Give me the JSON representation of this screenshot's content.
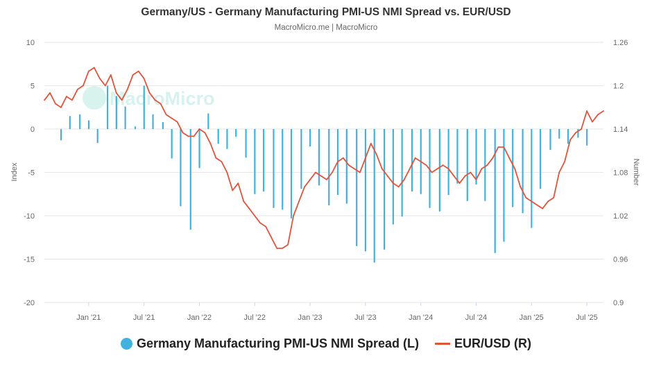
{
  "chart_data": {
    "type": "bar+line",
    "title": "Germany/US - Germany Manufacturing PMI-US NMI Spread vs. EUR/USD",
    "subtitle": "MacroMicro.me | MacroMicro",
    "watermark": "MacroMicro",
    "x_ticks": [
      "Jan '21",
      "Jul '21",
      "Jan '22",
      "Jul '22",
      "Jan '23",
      "Jul '23",
      "Jan '24",
      "Jul '24",
      "Jan '25",
      "Jul '25"
    ],
    "y_left": {
      "label": "Index",
      "min": -20,
      "max": 10,
      "ticks": [
        "10",
        "5",
        "0",
        "-5",
        "-10",
        "-15",
        "-20"
      ]
    },
    "y_right": {
      "label": "Number",
      "min": 0.9,
      "max": 1.26,
      "ticks": [
        "1.26",
        "1.2",
        "1.14",
        "1.08",
        "1.02",
        "0.96",
        "0.9"
      ]
    },
    "colors": {
      "spread": "#41b2dd",
      "eurusd": "#e2533a",
      "grid": "#e6e6e6"
    },
    "series": [
      {
        "name": "Germany Manufacturing PMI-US NMI Spread (L)",
        "type": "bar",
        "axis": "left",
        "x": [
          2020.75,
          2020.83,
          2020.92,
          2021.0,
          2021.08,
          2021.17,
          2021.25,
          2021.33,
          2021.42,
          2021.5,
          2021.58,
          2021.67,
          2021.75,
          2021.83,
          2021.92,
          2022.0,
          2022.08,
          2022.17,
          2022.25,
          2022.33,
          2022.42,
          2022.5,
          2022.58,
          2022.67,
          2022.75,
          2022.83,
          2022.92,
          2023.0,
          2023.08,
          2023.17,
          2023.25,
          2023.33,
          2023.42,
          2023.5,
          2023.58,
          2023.67,
          2023.75,
          2023.83,
          2023.92,
          2024.0,
          2024.08,
          2024.17,
          2024.25,
          2024.33,
          2024.42,
          2024.5,
          2024.58,
          2024.67,
          2024.75,
          2024.83,
          2024.92,
          2025.0,
          2025.08,
          2025.17,
          2025.25,
          2025.33,
          2025.42,
          2025.5
        ],
        "values": [
          -1.3,
          1.5,
          1.7,
          1.0,
          -1.6,
          5.0,
          3.8,
          2.6,
          0.3,
          5.0,
          1.7,
          0.8,
          -3.4,
          -8.9,
          -11.6,
          -4.5,
          1.8,
          -1.7,
          -2.3,
          -0.9,
          -3.3,
          -7.5,
          -7.2,
          -9.1,
          -9.3,
          -10.3,
          -6.9,
          -2.0,
          -6.5,
          -8.8,
          -7.6,
          -8.6,
          -13.5,
          -14.1,
          -15.4,
          -13.9,
          -11.0,
          -10.1,
          -7.2,
          -7.5,
          -9.1,
          -9.5,
          -7.6,
          -6.3,
          -8.3,
          -6.4,
          -8.3,
          -14.3,
          -13.0,
          -9.0,
          -9.7,
          -11.4,
          -6.9,
          -2.4,
          -1.1,
          -1.7,
          -1.0,
          -1.9
        ]
      },
      {
        "name": "EUR/USD (R)",
        "type": "line",
        "axis": "right",
        "x": [
          2020.6,
          2020.65,
          2020.7,
          2020.75,
          2020.8,
          2020.85,
          2020.9,
          2020.95,
          2021.0,
          2021.05,
          2021.1,
          2021.15,
          2021.2,
          2021.25,
          2021.3,
          2021.35,
          2021.4,
          2021.45,
          2021.5,
          2021.55,
          2021.6,
          2021.65,
          2021.7,
          2021.75,
          2021.8,
          2021.85,
          2021.9,
          2021.95,
          2022.0,
          2022.05,
          2022.1,
          2022.15,
          2022.2,
          2022.25,
          2022.3,
          2022.35,
          2022.4,
          2022.45,
          2022.5,
          2022.55,
          2022.6,
          2022.65,
          2022.7,
          2022.75,
          2022.8,
          2022.85,
          2022.9,
          2022.95,
          2023.0,
          2023.05,
          2023.1,
          2023.15,
          2023.2,
          2023.25,
          2023.3,
          2023.35,
          2023.4,
          2023.45,
          2023.5,
          2023.55,
          2023.6,
          2023.65,
          2023.7,
          2023.75,
          2023.8,
          2023.85,
          2023.9,
          2023.95,
          2024.0,
          2024.05,
          2024.1,
          2024.15,
          2024.2,
          2024.25,
          2024.3,
          2024.35,
          2024.4,
          2024.45,
          2024.5,
          2024.55,
          2024.6,
          2024.65,
          2024.7,
          2024.75,
          2024.8,
          2024.85,
          2024.9,
          2024.95,
          2025.0,
          2025.05,
          2025.1,
          2025.15,
          2025.2,
          2025.25,
          2025.3,
          2025.35,
          2025.4,
          2025.45,
          2025.5,
          2025.55,
          2025.6,
          2025.65
        ],
        "values": [
          1.18,
          1.19,
          1.175,
          1.17,
          1.185,
          1.18,
          1.195,
          1.2,
          1.22,
          1.225,
          1.21,
          1.2,
          1.215,
          1.19,
          1.18,
          1.195,
          1.215,
          1.22,
          1.21,
          1.19,
          1.18,
          1.175,
          1.16,
          1.155,
          1.15,
          1.135,
          1.13,
          1.13,
          1.14,
          1.135,
          1.12,
          1.1,
          1.095,
          1.08,
          1.055,
          1.065,
          1.04,
          1.03,
          1.02,
          1.01,
          1.005,
          0.99,
          0.975,
          0.975,
          0.98,
          1.02,
          1.04,
          1.06,
          1.07,
          1.08,
          1.075,
          1.07,
          1.08,
          1.095,
          1.1,
          1.09,
          1.085,
          1.08,
          1.1,
          1.12,
          1.105,
          1.085,
          1.075,
          1.065,
          1.06,
          1.07,
          1.085,
          1.1,
          1.095,
          1.09,
          1.08,
          1.085,
          1.09,
          1.085,
          1.075,
          1.065,
          1.075,
          1.08,
          1.07,
          1.085,
          1.09,
          1.1,
          1.115,
          1.115,
          1.1,
          1.085,
          1.06,
          1.045,
          1.04,
          1.035,
          1.03,
          1.04,
          1.045,
          1.08,
          1.095,
          1.125,
          1.135,
          1.14,
          1.165,
          1.15,
          1.16,
          1.165
        ]
      }
    ]
  },
  "legend": {
    "spread_label": "Germany Manufacturing PMI-US NMI Spread (L)",
    "eurusd_label": "EUR/USD (R)"
  }
}
